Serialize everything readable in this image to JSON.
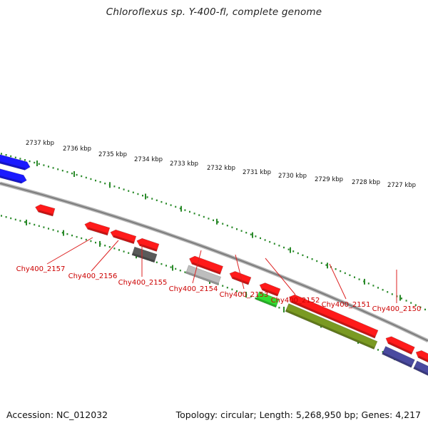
{
  "title": "Chloroflexus sp. Y-400-fl, complete genome",
  "accession_text": "Accession: NC_012032",
  "summary_text": "Topology: circular; Length: 5,268,950 bp; Genes: 4,217",
  "colors": {
    "backbone": "#8a8a8a",
    "tick": "#2a8a2a",
    "label_line": "#dd2222",
    "red": "#ff1a1a",
    "blue": "#1a1aff",
    "dark_gray": "#5a5a5a",
    "light_gray": "#bdbdbd",
    "green": "#33dd33",
    "olive": "#7a9a22",
    "slate": "#4a4aa0"
  },
  "tick_labels": [
    "2737 kbp",
    "2736 kbp",
    "2735 kbp",
    "2734 kbp",
    "2733 kbp",
    "2732 kbp",
    "2731 kbp",
    "2730 kbp",
    "2729 kbp",
    "2728 kbp",
    "2727 kbp"
  ],
  "gene_labels": [
    "Chy400_2157",
    "Chy400_2156",
    "Chy400_2155",
    "Chy400_2154",
    "Chy400_2153",
    "Chy400_2152",
    "Chy400_2151",
    "Chy400_2150"
  ],
  "features": [
    {
      "color": "blue"
    },
    {
      "color": "blue"
    },
    {
      "color": "red"
    },
    {
      "color": "red"
    },
    {
      "color": "red"
    },
    {
      "color": "red"
    },
    {
      "color": "red"
    },
    {
      "color": "red"
    },
    {
      "color": "red"
    },
    {
      "color": "red"
    },
    {
      "color": "red"
    },
    {
      "color": "red"
    },
    {
      "color": "dark_gray"
    },
    {
      "color": "light_gray"
    },
    {
      "color": "green"
    },
    {
      "color": "olive"
    },
    {
      "color": "slate"
    },
    {
      "color": "slate"
    }
  ]
}
